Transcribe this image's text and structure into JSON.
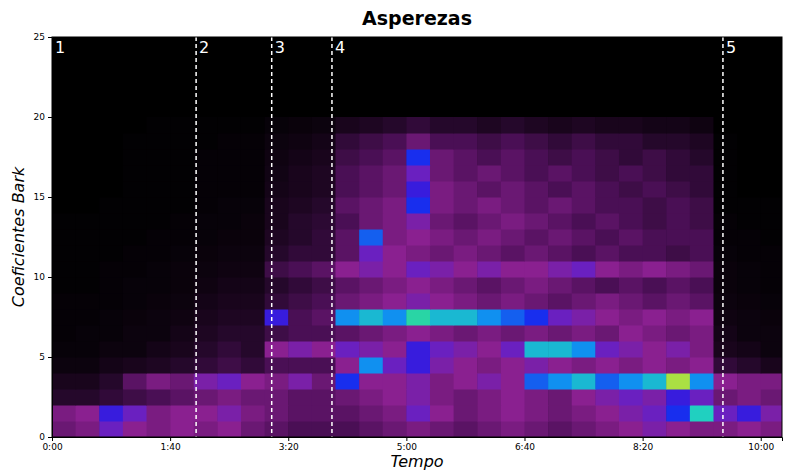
{
  "chart_data": {
    "type": "heatmap",
    "title": "Asperezas",
    "xlabel": "Tempo",
    "ylabel": "Coeficientes Bark",
    "xlim": [
      0,
      618
    ],
    "ylim": [
      0,
      25
    ],
    "xticks": [
      {
        "value": 0,
        "label": "0:00"
      },
      {
        "value": 100,
        "label": "1:40"
      },
      {
        "value": 200,
        "label": "3:20"
      },
      {
        "value": 300,
        "label": "5:00"
      },
      {
        "value": 400,
        "label": "6:40"
      },
      {
        "value": 500,
        "label": "8:20"
      },
      {
        "value": 600,
        "label": "10:00"
      }
    ],
    "yticks": [
      0,
      5,
      10,
      15,
      20,
      25
    ],
    "zlim": [
      0,
      1
    ],
    "sections": [
      {
        "label": "1",
        "x": 0
      },
      {
        "label": "2",
        "x": 122
      },
      {
        "label": "3",
        "x": 186
      },
      {
        "label": "4",
        "x": 237
      },
      {
        "label": "5",
        "x": 568
      }
    ],
    "x_edges": [
      0,
      20,
      40,
      60,
      80,
      100,
      120,
      140,
      160,
      180,
      200,
      220,
      240,
      260,
      280,
      300,
      320,
      340,
      360,
      380,
      400,
      420,
      440,
      460,
      480,
      500,
      520,
      540,
      560,
      580,
      600,
      618
    ],
    "y_edges": [
      0,
      1,
      2,
      3,
      4,
      5,
      6,
      7,
      8,
      9,
      10,
      11,
      12,
      13,
      14,
      15,
      16,
      17,
      18,
      19,
      20
    ],
    "cells": [
      [
        0.4,
        0.45,
        0.6,
        0.5,
        0.45,
        0.5,
        0.45,
        0.5,
        0.4,
        0.35,
        0.3,
        0.3,
        0.3,
        0.35,
        0.4,
        0.45,
        0.4,
        0.35,
        0.4,
        0.45,
        0.4,
        0.35,
        0.4,
        0.45,
        0.5,
        0.55,
        0.5,
        0.45,
        0.45,
        0.5,
        0.45
      ],
      [
        0.45,
        0.5,
        0.65,
        0.6,
        0.45,
        0.5,
        0.5,
        0.55,
        0.45,
        0.4,
        0.35,
        0.35,
        0.35,
        0.4,
        0.45,
        0.6,
        0.5,
        0.4,
        0.45,
        0.5,
        0.45,
        0.4,
        0.45,
        0.5,
        0.55,
        0.6,
        0.7,
        0.88,
        0.6,
        0.65,
        0.55
      ],
      [
        0.15,
        0.15,
        0.2,
        0.25,
        0.3,
        0.35,
        0.4,
        0.45,
        0.4,
        0.4,
        0.35,
        0.35,
        0.4,
        0.45,
        0.5,
        0.55,
        0.45,
        0.4,
        0.45,
        0.5,
        0.45,
        0.4,
        0.5,
        0.55,
        0.6,
        0.55,
        0.65,
        0.6,
        0.4,
        0.45,
        0.4
      ],
      [
        0.1,
        0.1,
        0.15,
        0.35,
        0.45,
        0.4,
        0.55,
        0.6,
        0.5,
        0.45,
        0.55,
        0.4,
        0.7,
        0.5,
        0.5,
        0.55,
        0.45,
        0.5,
        0.55,
        0.5,
        0.75,
        0.8,
        0.85,
        0.75,
        0.8,
        0.85,
        0.98,
        0.8,
        0.5,
        0.45,
        0.45
      ],
      [
        0.05,
        0.05,
        0.08,
        0.1,
        0.12,
        0.15,
        0.2,
        0.25,
        0.2,
        0.3,
        0.3,
        0.3,
        0.5,
        0.8,
        0.6,
        0.65,
        0.55,
        0.5,
        0.45,
        0.5,
        0.55,
        0.5,
        0.45,
        0.5,
        0.45,
        0.5,
        0.45,
        0.5,
        0.2,
        0.15,
        0.1
      ],
      [
        0.03,
        0.03,
        0.05,
        0.05,
        0.08,
        0.1,
        0.15,
        0.2,
        0.15,
        0.5,
        0.55,
        0.5,
        0.6,
        0.55,
        0.5,
        0.65,
        0.6,
        0.55,
        0.5,
        0.6,
        0.85,
        0.85,
        0.8,
        0.6,
        0.55,
        0.5,
        0.55,
        0.45,
        0.1,
        0.08,
        0.05
      ],
      [
        0.02,
        0.03,
        0.03,
        0.05,
        0.05,
        0.08,
        0.12,
        0.15,
        0.15,
        0.25,
        0.3,
        0.3,
        0.35,
        0.4,
        0.45,
        0.5,
        0.45,
        0.4,
        0.45,
        0.4,
        0.45,
        0.4,
        0.45,
        0.4,
        0.5,
        0.45,
        0.4,
        0.45,
        0.08,
        0.05,
        0.05
      ],
      [
        0.02,
        0.02,
        0.03,
        0.04,
        0.05,
        0.06,
        0.1,
        0.12,
        0.12,
        0.65,
        0.3,
        0.35,
        0.8,
        0.85,
        0.8,
        0.9,
        0.85,
        0.85,
        0.8,
        0.75,
        0.7,
        0.6,
        0.55,
        0.5,
        0.45,
        0.5,
        0.45,
        0.5,
        0.06,
        0.05,
        0.04
      ],
      [
        0.02,
        0.02,
        0.02,
        0.03,
        0.04,
        0.05,
        0.08,
        0.1,
        0.1,
        0.2,
        0.25,
        0.3,
        0.4,
        0.45,
        0.5,
        0.55,
        0.5,
        0.45,
        0.4,
        0.45,
        0.4,
        0.35,
        0.4,
        0.45,
        0.4,
        0.35,
        0.4,
        0.35,
        0.05,
        0.04,
        0.03
      ],
      [
        0.01,
        0.01,
        0.02,
        0.03,
        0.03,
        0.04,
        0.06,
        0.08,
        0.08,
        0.15,
        0.2,
        0.25,
        0.35,
        0.4,
        0.45,
        0.5,
        0.45,
        0.4,
        0.35,
        0.4,
        0.45,
        0.4,
        0.35,
        0.3,
        0.35,
        0.3,
        0.35,
        0.3,
        0.04,
        0.03,
        0.02
      ],
      [
        0.01,
        0.01,
        0.02,
        0.02,
        0.03,
        0.04,
        0.05,
        0.06,
        0.06,
        0.25,
        0.3,
        0.35,
        0.5,
        0.55,
        0.5,
        0.6,
        0.55,
        0.5,
        0.55,
        0.5,
        0.5,
        0.55,
        0.6,
        0.5,
        0.45,
        0.5,
        0.45,
        0.4,
        0.04,
        0.03,
        0.02
      ],
      [
        0.01,
        0.01,
        0.01,
        0.02,
        0.02,
        0.03,
        0.04,
        0.05,
        0.05,
        0.15,
        0.2,
        0.2,
        0.35,
        0.6,
        0.5,
        0.45,
        0.4,
        0.45,
        0.4,
        0.35,
        0.4,
        0.35,
        0.3,
        0.35,
        0.3,
        0.3,
        0.25,
        0.3,
        0.03,
        0.02,
        0.02
      ],
      [
        0.01,
        0.01,
        0.01,
        0.01,
        0.02,
        0.02,
        0.03,
        0.04,
        0.04,
        0.12,
        0.15,
        0.2,
        0.35,
        0.75,
        0.45,
        0.5,
        0.45,
        0.4,
        0.45,
        0.4,
        0.35,
        0.4,
        0.35,
        0.3,
        0.35,
        0.3,
        0.3,
        0.3,
        0.02,
        0.02,
        0.01
      ],
      [
        0.01,
        0.01,
        0.01,
        0.01,
        0.01,
        0.02,
        0.03,
        0.03,
        0.04,
        0.1,
        0.15,
        0.18,
        0.3,
        0.4,
        0.45,
        0.55,
        0.4,
        0.35,
        0.4,
        0.45,
        0.4,
        0.35,
        0.3,
        0.35,
        0.3,
        0.25,
        0.3,
        0.25,
        0.02,
        0.01,
        0.01
      ],
      [
        0,
        0,
        0.01,
        0.01,
        0.01,
        0.01,
        0.02,
        0.03,
        0.03,
        0.1,
        0.12,
        0.15,
        0.35,
        0.4,
        0.45,
        0.7,
        0.45,
        0.4,
        0.45,
        0.4,
        0.35,
        0.4,
        0.35,
        0.3,
        0.3,
        0.25,
        0.3,
        0.25,
        0.01,
        0.01,
        0.01
      ],
      [
        0,
        0,
        0,
        0.01,
        0.01,
        0.01,
        0.02,
        0.02,
        0.02,
        0.08,
        0.1,
        0.12,
        0.3,
        0.35,
        0.4,
        0.65,
        0.45,
        0.4,
        0.35,
        0.4,
        0.35,
        0.3,
        0.35,
        0.3,
        0.25,
        0.3,
        0.25,
        0.2,
        0.01,
        0,
        0
      ],
      [
        0,
        0,
        0,
        0.01,
        0.01,
        0.01,
        0.02,
        0.02,
        0.02,
        0.07,
        0.1,
        0.12,
        0.3,
        0.35,
        0.4,
        0.6,
        0.4,
        0.35,
        0.4,
        0.35,
        0.3,
        0.35,
        0.3,
        0.25,
        0.3,
        0.25,
        0.2,
        0.2,
        0.01,
        0,
        0
      ],
      [
        0,
        0,
        0,
        0.01,
        0.01,
        0.01,
        0.02,
        0.02,
        0.02,
        0.06,
        0.08,
        0.1,
        0.25,
        0.3,
        0.35,
        0.7,
        0.4,
        0.35,
        0.3,
        0.35,
        0.3,
        0.25,
        0.3,
        0.25,
        0.2,
        0.25,
        0.2,
        0.15,
        0.01,
        0,
        0
      ],
      [
        0,
        0,
        0,
        0.01,
        0.01,
        0.01,
        0.01,
        0.02,
        0.02,
        0.05,
        0.06,
        0.08,
        0.2,
        0.25,
        0.3,
        0.4,
        0.3,
        0.3,
        0.25,
        0.3,
        0.25,
        0.2,
        0.25,
        0.2,
        0.2,
        0.15,
        0.15,
        0.12,
        0.01,
        0,
        0
      ],
      [
        0,
        0,
        0,
        0,
        0.01,
        0.01,
        0.01,
        0.01,
        0.01,
        0.03,
        0.04,
        0.05,
        0.1,
        0.12,
        0.15,
        0.2,
        0.15,
        0.15,
        0.12,
        0.15,
        0.12,
        0.1,
        0.12,
        0.1,
        0.1,
        0.08,
        0.08,
        0.06,
        0,
        0,
        0
      ]
    ]
  }
}
